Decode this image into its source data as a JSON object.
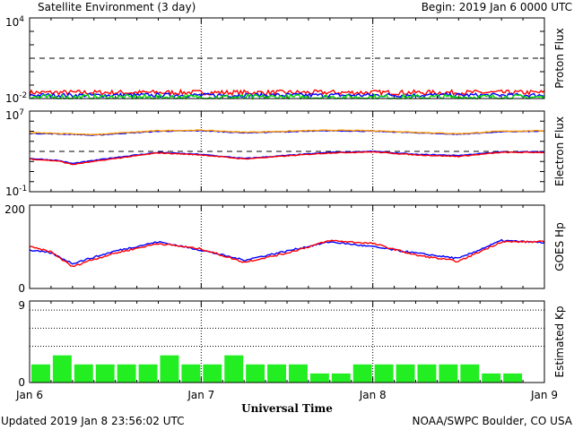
{
  "header": {
    "title": "Satellite Environment (3 day)",
    "begin": "Begin:  2019 Jan 6 0000 UTC"
  },
  "footer": {
    "updated": "Updated 2019 Jan  8 23:56:02 UTC",
    "credit": "NOAA/SWPC Boulder, CO USA"
  },
  "chart_data": {
    "type": "multi-panel time series",
    "x_axis": {
      "label": "Universal Time",
      "ticks": [
        "Jan 6",
        "Jan 7",
        "Jan 8",
        "Jan 9"
      ],
      "range_hours": [
        0,
        72
      ],
      "day_markers_hours": [
        24,
        48
      ]
    },
    "panels": [
      {
        "id": "proton",
        "type": "line",
        "ylabel": "Proton Flux",
        "scale": "log",
        "ylim_exp": [
          -2,
          4
        ],
        "tick_labels": [
          {
            "base": "10",
            "exp": "4"
          },
          {
            "base": "10",
            "exp": "-2"
          }
        ],
        "threshold_exp": 1,
        "series": [
          {
            "color": "#ff0000",
            "level_exp": -1.55,
            "noise": 0.18
          },
          {
            "color": "#0000ff",
            "level_exp": -1.75,
            "noise": 0.15
          },
          {
            "color": "#00dd00",
            "level_exp": -1.9,
            "noise": 0.2
          }
        ]
      },
      {
        "id": "electron",
        "type": "line",
        "ylabel": "Electron Flux",
        "scale": "log",
        "ylim_exp": [
          -1,
          7
        ],
        "tick_labels": [
          {
            "base": "10",
            "exp": "7"
          },
          {
            "base": "10",
            "exp": "-1"
          }
        ],
        "threshold_exp": 3,
        "series": [
          {
            "color": "#0000ff",
            "x": [
              0,
              6,
              9,
              12,
              18,
              24,
              30,
              36,
              42,
              48,
              54,
              60,
              66,
              72
            ],
            "y": [
              4.8,
              4.7,
              4.6,
              4.75,
              5.0,
              5.05,
              4.85,
              4.95,
              5.05,
              5.0,
              4.85,
              4.7,
              4.95,
              5.0
            ]
          },
          {
            "color": "#ff9900",
            "x": [
              0,
              6,
              9,
              12,
              18,
              24,
              30,
              36,
              42,
              48,
              54,
              60,
              66,
              72
            ],
            "y": [
              4.85,
              4.75,
              4.65,
              4.8,
              5.05,
              5.1,
              4.9,
              5.0,
              5.1,
              5.05,
              4.9,
              4.75,
              5.0,
              5.05
            ]
          },
          {
            "color": "#0000ff",
            "x": [
              0,
              4,
              6,
              8,
              12,
              18,
              24,
              30,
              36,
              42,
              48,
              54,
              60,
              66,
              72
            ],
            "y": [
              2.3,
              2.1,
              1.8,
              2.0,
              2.4,
              2.9,
              2.7,
              2.3,
              2.6,
              2.9,
              3.0,
              2.7,
              2.6,
              2.95,
              2.95
            ]
          },
          {
            "color": "#ff0000",
            "x": [
              0,
              4,
              6,
              8,
              12,
              18,
              24,
              30,
              36,
              42,
              48,
              54,
              60,
              66,
              72
            ],
            "y": [
              2.25,
              2.05,
              1.7,
              1.9,
              2.3,
              2.85,
              2.65,
              2.25,
              2.55,
              2.85,
              2.95,
              2.65,
              2.5,
              2.9,
              2.9
            ]
          }
        ]
      },
      {
        "id": "goes_hp",
        "type": "line",
        "ylabel": "GOES Hp",
        "scale": "linear",
        "ylim": [
          0,
          200
        ],
        "tick_labels": [
          "200",
          "0"
        ],
        "series": [
          {
            "color": "#0000ff",
            "x": [
              0,
              3,
              6,
              8,
              12,
              18,
              24,
              30,
              36,
              42,
              48,
              54,
              60,
              66,
              72
            ],
            "y": [
              92,
              85,
              60,
              70,
              90,
              112,
              92,
              68,
              90,
              112,
              100,
              85,
              72,
              115,
              110
            ]
          },
          {
            "color": "#ff0000",
            "x": [
              0,
              3,
              6,
              8,
              12,
              18,
              24,
              30,
              36,
              42,
              48,
              54,
              60,
              66,
              72
            ],
            "y": [
              100,
              88,
              52,
              65,
              85,
              108,
              95,
              63,
              85,
              115,
              108,
              80,
              65,
              112,
              112
            ]
          }
        ]
      },
      {
        "id": "kp",
        "type": "bar",
        "ylabel": "Estimated Kp",
        "scale": "linear",
        "ylim": [
          0,
          9
        ],
        "tick_labels": [
          "9",
          "0"
        ],
        "bar_color": "#22ee22",
        "bar_hours": 3,
        "values": [
          2,
          3,
          2,
          2,
          2,
          2,
          3,
          2,
          2,
          3,
          2,
          2,
          2,
          1,
          1,
          2,
          2,
          2,
          2,
          2,
          2,
          1,
          1,
          0
        ]
      }
    ]
  }
}
